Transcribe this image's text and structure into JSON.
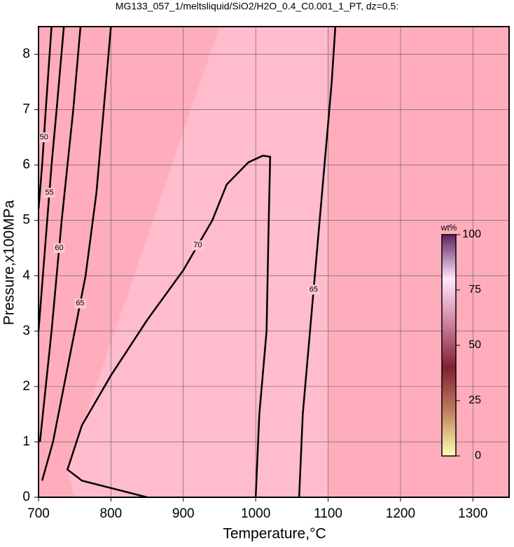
{
  "chart_data": {
    "type": "contour",
    "title": "MG133_057_1/meltsliquid/SiO2/H2O_0.4_C0.001_1_PT, dz=0.5:",
    "xlabel": "Temperature,°C",
    "ylabel": "Pressure,x100MPa",
    "xlim": [
      700,
      1350
    ],
    "xticks": [
      700,
      800,
      900,
      1000,
      1100,
      1200,
      1300
    ],
    "ylim": [
      0,
      8.5
    ],
    "yticks": [
      0,
      1,
      2,
      3,
      4,
      5,
      6,
      7,
      8
    ],
    "grid": true,
    "background": "#ffadbd",
    "line_color": "#000000",
    "contours": [
      {
        "level": 70,
        "x": [
          850,
          820,
          760,
          740,
          760,
          800,
          850,
          900,
          940,
          960,
          990,
          1010,
          1020,
          1018,
          1015,
          1005,
          1000
        ],
        "y": [
          0,
          0.1,
          0.3,
          0.5,
          1.3,
          2.2,
          3.2,
          4.1,
          5.0,
          5.65,
          6.05,
          6.17,
          6.15,
          5.0,
          3.0,
          1.5,
          0
        ]
      },
      {
        "level": 65,
        "x": [
          1060,
          1065,
          1075,
          1085,
          1095,
          1105,
          1110
        ],
        "y": [
          0,
          1.5,
          3.0,
          4.5,
          6.0,
          7.5,
          8.5
        ]
      },
      {
        "level": 65,
        "x": [
          705,
          720,
          735,
          750,
          765,
          780,
          790,
          800
        ],
        "y": [
          0.3,
          1.0,
          2.0,
          3.0,
          4.0,
          5.5,
          7.0,
          8.5
        ]
      },
      {
        "level": 60,
        "x": [
          702,
          710,
          718,
          725,
          732,
          740,
          748,
          758
        ],
        "y": [
          1.0,
          2.0,
          3.0,
          4.0,
          5.0,
          6.0,
          7.0,
          8.5
        ]
      },
      {
        "level": 55,
        "x": [
          700,
          706,
          712,
          718,
          725,
          735
        ],
        "y": [
          3.0,
          4.0,
          5.0,
          6.0,
          7.0,
          8.5
        ]
      },
      {
        "level": 50,
        "x": [
          700,
          705,
          710,
          718
        ],
        "y": [
          5.2,
          6.0,
          7.0,
          8.5
        ]
      }
    ],
    "colorbar": {
      "label": "wt%",
      "lim": [
        0,
        100
      ],
      "ticks": [
        0,
        25,
        50,
        75,
        100
      ],
      "colors": [
        "#ffffb0",
        "#c08060",
        "#802030",
        "#d080a0",
        "#ffe8f8",
        "#602060"
      ]
    }
  }
}
